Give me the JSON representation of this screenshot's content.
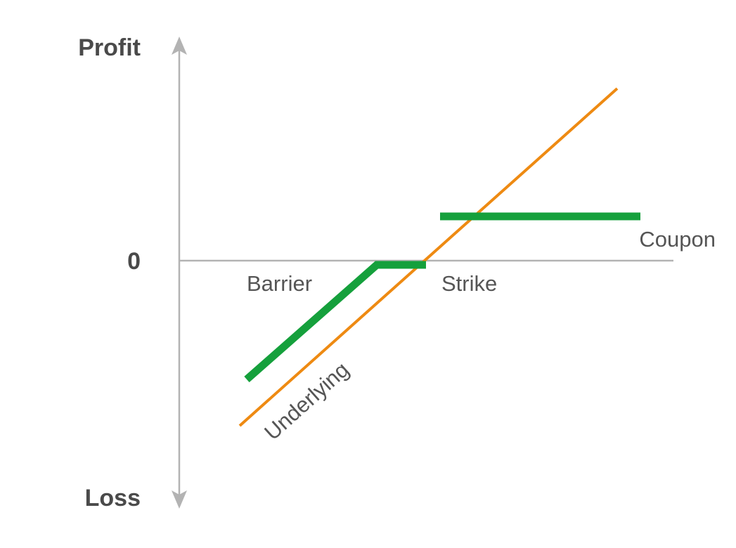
{
  "axes": {
    "y_top_label": "Profit",
    "y_zero_label": "0",
    "y_bottom_label": "Loss"
  },
  "annotations": {
    "barrier": "Barrier",
    "strike": "Strike",
    "coupon": "Coupon",
    "underlying": "Underlying"
  },
  "colors": {
    "axis": "#b3b3b3",
    "underlying_line": "#ee8a12",
    "payoff_line": "#15a03c",
    "label_text": "#4a4a4a"
  },
  "icons": [
    "arrow-up-icon",
    "arrow-down-icon"
  ]
}
